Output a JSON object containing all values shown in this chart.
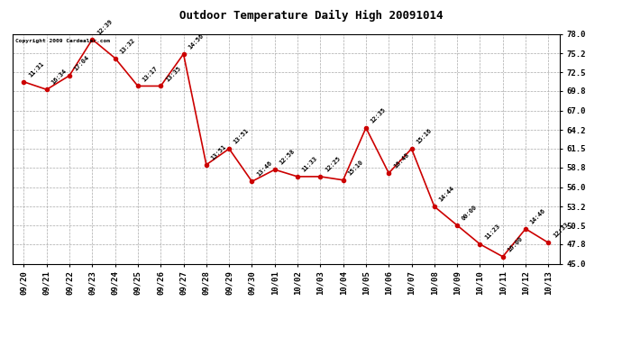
{
  "title": "Outdoor Temperature Daily High 20091014",
  "copyright_text": "Copyright 2009 Cardealer.com",
  "line_color": "#cc0000",
  "marker_color": "#cc0000",
  "background_color": "#ffffff",
  "plot_background": "#ffffff",
  "grid_color": "#aaaaaa",
  "ylim": [
    45.0,
    78.0
  ],
  "yticks": [
    45.0,
    47.8,
    50.5,
    53.2,
    56.0,
    58.8,
    61.5,
    64.2,
    67.0,
    69.8,
    72.5,
    75.2,
    78.0
  ],
  "dates": [
    "09/20",
    "09/21",
    "09/22",
    "09/23",
    "09/24",
    "09/25",
    "09/26",
    "09/27",
    "09/28",
    "09/29",
    "09/30",
    "10/01",
    "10/02",
    "10/03",
    "10/04",
    "10/05",
    "10/06",
    "10/07",
    "10/08",
    "10/09",
    "10/10",
    "10/11",
    "10/12",
    "10/13"
  ],
  "values": [
    71.1,
    70.0,
    72.0,
    77.2,
    74.5,
    70.5,
    70.5,
    75.1,
    59.2,
    61.5,
    56.8,
    58.5,
    57.5,
    57.5,
    57.0,
    64.5,
    58.0,
    61.5,
    53.2,
    50.5,
    47.8,
    46.0,
    50.0,
    48.0
  ],
  "time_labels": [
    "11:31",
    "16:34",
    "17:04",
    "12:39",
    "13:32",
    "13:17",
    "13:35",
    "14:56",
    "13:51",
    "13:51",
    "13:46",
    "12:58",
    "11:33",
    "12:25",
    "15:10",
    "12:35",
    "16:48",
    "15:16",
    "14:44",
    "00:00",
    "11:23",
    "16:00",
    "14:46",
    "12:33"
  ],
  "figsize": [
    6.9,
    3.75
  ],
  "dpi": 100
}
